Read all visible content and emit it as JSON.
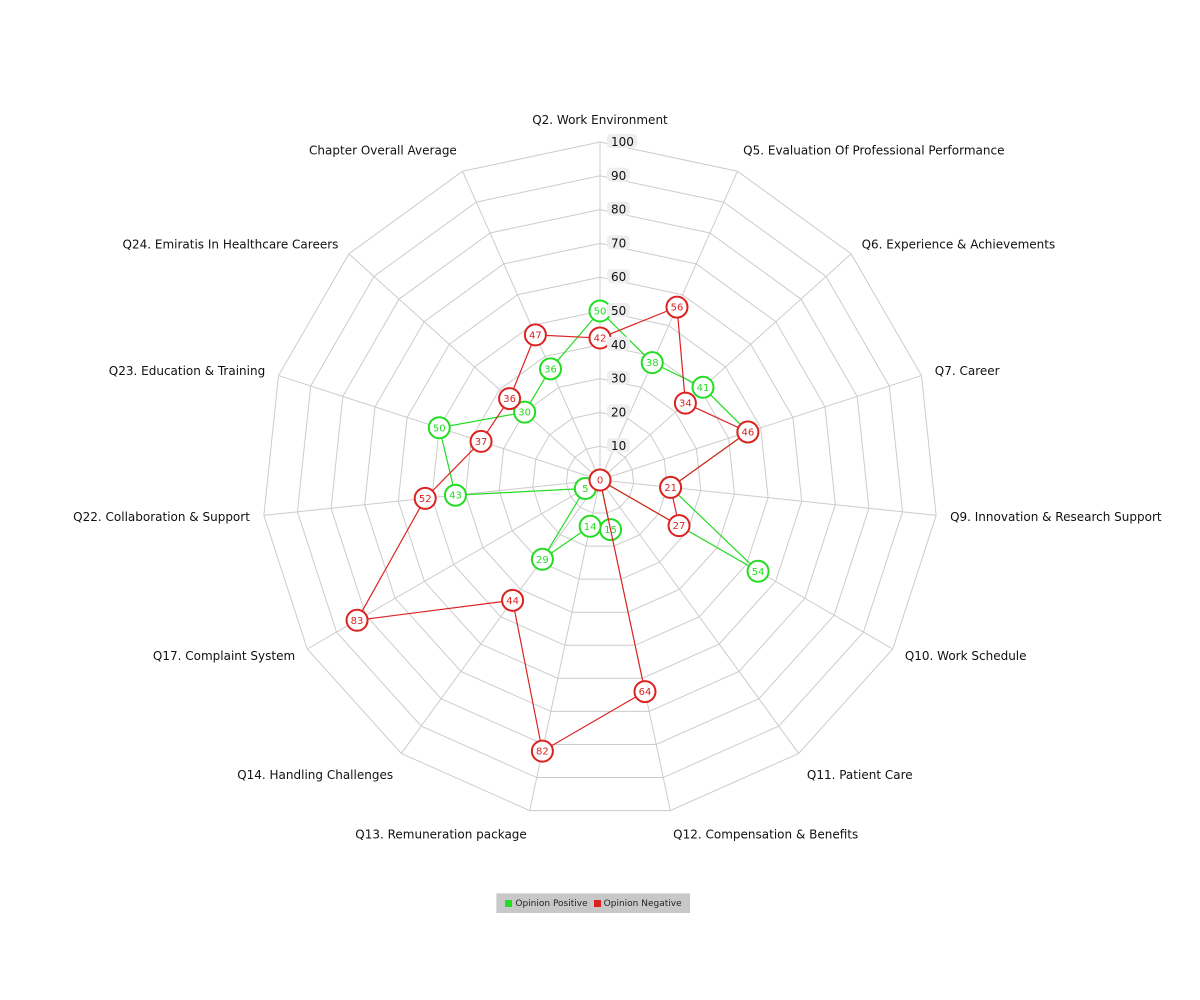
{
  "chart_data": {
    "type": "radar",
    "axes": [
      "Q2. Work Environment",
      "Q5. Evaluation Of Professional Performance",
      "Q6. Experience & Achievements",
      "Q7. Career",
      "Q9. Innovation & Research Support",
      "Q10. Work Schedule",
      "Q11. Patient Care",
      "Q12. Compensation & Benefits",
      "Q13. Remuneration package",
      "Q14. Handling Challenges",
      "Q17. Complaint System",
      "Q22. Collaboration & Support",
      "Q23. Education & Training",
      "Q24. Emiratis In Healthcare Careers",
      "Chapter Overall Average"
    ],
    "rlim": [
      0,
      100
    ],
    "ticks": [
      "10",
      "20",
      "30",
      "40",
      "50",
      "60",
      "70",
      "80",
      "90",
      "100"
    ],
    "series": [
      {
        "name": "Opinion Positive",
        "color": "#22dd22",
        "values": [
          50,
          38,
          41,
          46,
          21,
          54,
          0,
          15,
          14,
          29,
          5,
          43,
          50,
          30,
          36
        ]
      },
      {
        "name": "Opinion Negative",
        "color": "#dd2222",
        "values": [
          42,
          56,
          34,
          46,
          21,
          27,
          0,
          64,
          82,
          44,
          83,
          52,
          37,
          36,
          47
        ]
      }
    ],
    "legend_position": "bottom-center",
    "grid": true
  }
}
